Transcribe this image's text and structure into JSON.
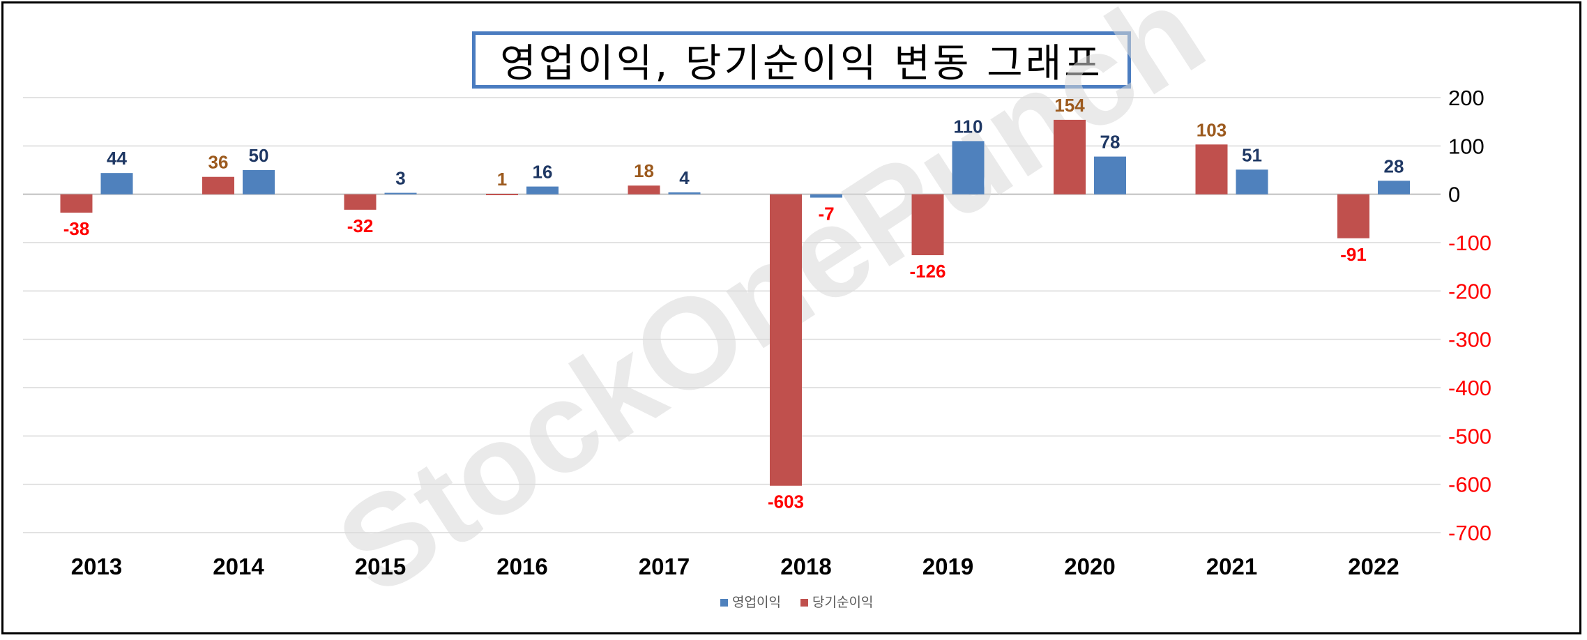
{
  "chart_data": {
    "type": "bar",
    "title": "영업이익, 당기순이익 변동 그래프",
    "categories": [
      "2013",
      "2014",
      "2015",
      "2016",
      "2017",
      "2018",
      "2019",
      "2020",
      "2021",
      "2022"
    ],
    "series": [
      {
        "name": "당기순이익",
        "color": "#c0504d",
        "values": [
          -38,
          36,
          -32,
          1,
          18,
          -603,
          -126,
          154,
          103,
          -91
        ]
      },
      {
        "name": "영업이익",
        "color": "#4f81bd",
        "values": [
          44,
          50,
          3,
          16,
          4,
          -7,
          110,
          78,
          51,
          28
        ]
      }
    ],
    "ylim": [
      -700,
      200
    ],
    "yticks": [
      200,
      100,
      0,
      -100,
      -200,
      -300,
      -400,
      -500,
      -600,
      -700
    ],
    "y_axis_position": "right",
    "positive_tick_color": "#000000",
    "negative_tick_color": "#ff0000",
    "positive_label_colors": {
      "당기순이익": "#9c5a1e",
      "영업이익": "#1f3864"
    },
    "negative_label_color": "#ff0000",
    "grid": true,
    "legend": {
      "position": "bottom",
      "order": [
        "영업이익",
        "당기순이익"
      ]
    },
    "watermark": "StockOnePunch"
  }
}
